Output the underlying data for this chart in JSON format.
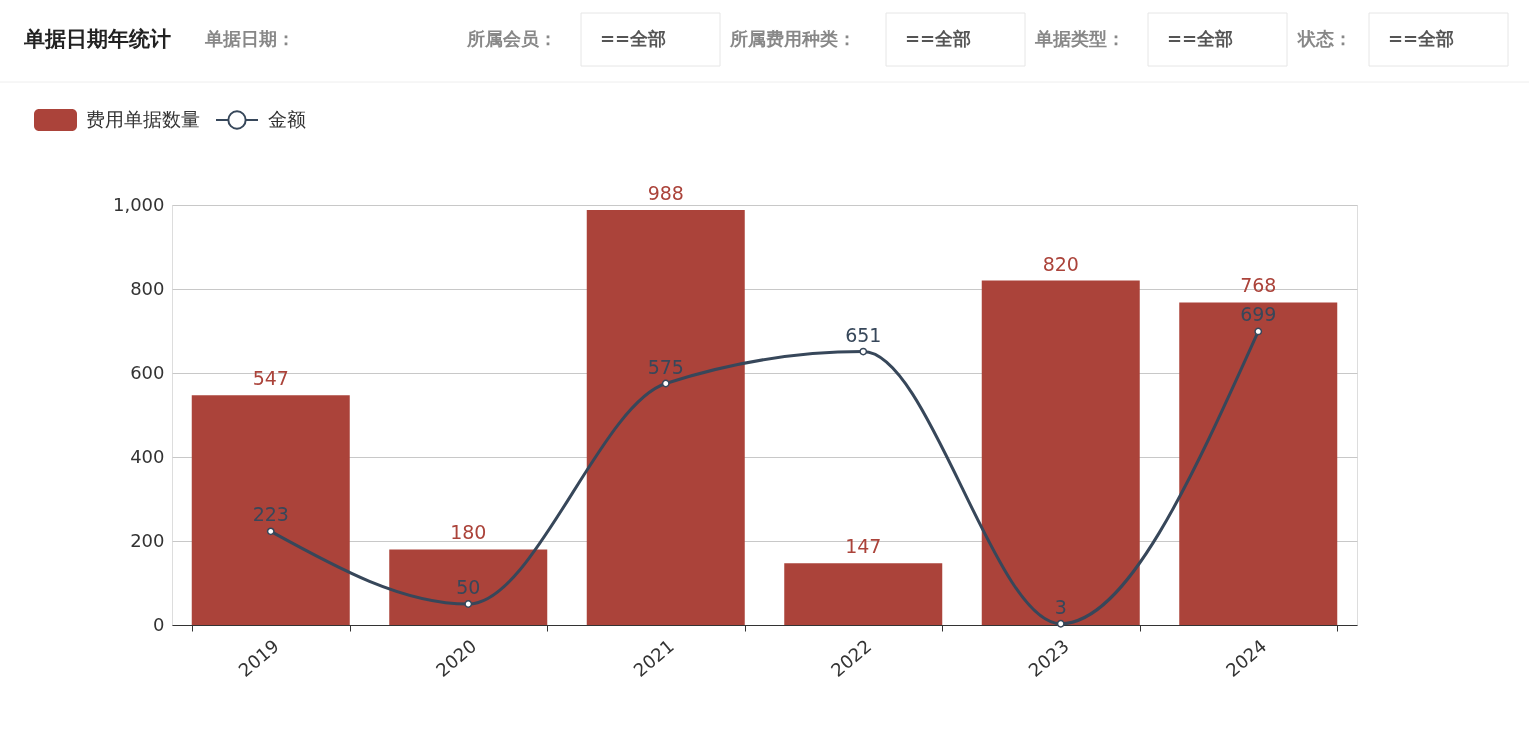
{
  "chart_data": {
    "type": "bar",
    "title": "单据日期年统计",
    "annotations": [
      "单据日期：",
      "所属会员：",
      "==全部",
      "所属费用种类：",
      "==全部",
      "单据类型：",
      "==全部",
      "状态：",
      "==全部"
    ],
    "categories": [
      "2019",
      "2020",
      "2021",
      "2022",
      "2023",
      "2024"
    ],
    "series": [
      {
        "name": "费用单据数量",
        "color": "#ab433a",
        "values": [
          547,
          180,
          988,
          147,
          820,
          768
        ]
      },
      {
        "name": "金额",
        "type": "line",
        "color": "#37475a",
        "values": [
          223,
          50,
          575,
          651,
          3,
          699
        ]
      }
    ],
    "ylim": [
      0,
      1000
    ],
    "yticks": [
      0,
      200,
      400,
      600,
      800,
      {
        "value": 1000,
        "label": "1,000"
      }
    ],
    "grid": "y",
    "legend": "top left",
    "marker": "circle",
    "line_style": "solid",
    "data_labels": true
  }
}
